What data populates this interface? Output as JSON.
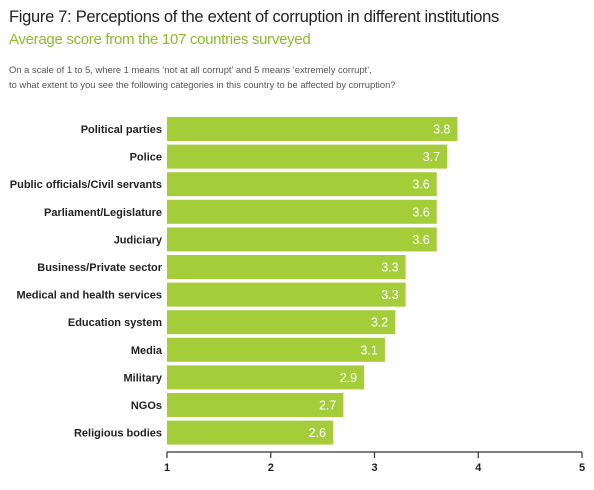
{
  "header": {
    "title": "Figure 7: Perceptions of the extent of corruption in different institutions",
    "subtitle": "Average score from the 107 countries surveyed",
    "question_line1": "On a scale of 1 to 5, where 1 means ‘not at all corrupt’ and 5 means ‘extremely corrupt’,",
    "question_line2": "to what extent to you see the following categories in this country to be affected by corruption?"
  },
  "colors": {
    "bar": "#a4cd39",
    "bar_label": "#ffffff",
    "title": "#222222",
    "subtitle": "#8abd2a",
    "axis": "#333333"
  },
  "chart_data": {
    "type": "bar",
    "orientation": "horizontal",
    "categories": [
      "Political parties",
      "Police",
      "Public officials/Civil servants",
      "Parliament/Legislature",
      "Judiciary",
      "Business/Private sector",
      "Medical and health services",
      "Education system",
      "Media",
      "Military",
      "NGOs",
      "Religious bodies"
    ],
    "values": [
      3.8,
      3.7,
      3.6,
      3.6,
      3.6,
      3.3,
      3.3,
      3.2,
      3.1,
      2.9,
      2.7,
      2.6
    ],
    "value_labels": [
      "3.8",
      "3.7",
      "3.6",
      "3.6",
      "3.6",
      "3.3",
      "3.3",
      "3.2",
      "3.1",
      "2.9",
      "2.7",
      "2.6"
    ],
    "xlim": [
      1,
      5
    ],
    "x_ticks": [
      "1",
      "2",
      "3",
      "4",
      "5"
    ],
    "grid": false,
    "legend": "none"
  }
}
